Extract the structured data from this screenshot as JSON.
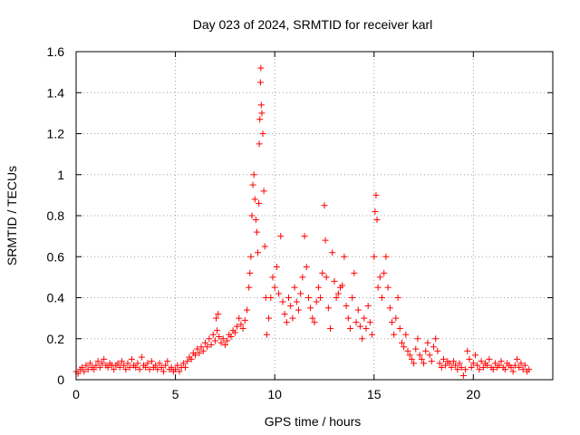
{
  "chart_data": {
    "type": "scatter",
    "title": "Day 023 of 2024, SRMTID for receiver karl",
    "xlabel": "GPS time / hours",
    "ylabel": "SRMTID / TECUs",
    "xlim": [
      0,
      24
    ],
    "ylim": [
      0,
      1.6
    ],
    "xticks": [
      0,
      5,
      10,
      15,
      20
    ],
    "xtick_labels": [
      "0",
      "5",
      "10",
      "15",
      "20"
    ],
    "yticks": [
      0,
      0.2,
      0.4,
      0.6,
      0.8,
      1.0,
      1.2,
      1.4,
      1.6
    ],
    "ytick_labels": [
      "0",
      "0.2",
      "0.4",
      "0.6",
      "0.8",
      "1",
      "1.2",
      "1.4",
      "1.6"
    ],
    "grid": true,
    "marker": "+",
    "color": "#ff0000",
    "series": [
      {
        "name": "SRMTID",
        "points": [
          [
            0.0,
            0.04
          ],
          [
            0.1,
            0.03
          ],
          [
            0.2,
            0.05
          ],
          [
            0.3,
            0.06
          ],
          [
            0.4,
            0.04
          ],
          [
            0.5,
            0.07
          ],
          [
            0.6,
            0.05
          ],
          [
            0.7,
            0.08
          ],
          [
            0.8,
            0.06
          ],
          [
            0.9,
            0.05
          ],
          [
            1.0,
            0.07
          ],
          [
            1.1,
            0.09
          ],
          [
            1.2,
            0.06
          ],
          [
            1.3,
            0.08
          ],
          [
            1.4,
            0.1
          ],
          [
            1.5,
            0.07
          ],
          [
            1.6,
            0.06
          ],
          [
            1.7,
            0.08
          ],
          [
            1.8,
            0.07
          ],
          [
            1.9,
            0.05
          ],
          [
            2.0,
            0.07
          ],
          [
            2.1,
            0.08
          ],
          [
            2.2,
            0.06
          ],
          [
            2.3,
            0.09
          ],
          [
            2.4,
            0.07
          ],
          [
            2.5,
            0.05
          ],
          [
            2.6,
            0.08
          ],
          [
            2.7,
            0.06
          ],
          [
            2.8,
            0.1
          ],
          [
            2.9,
            0.07
          ],
          [
            3.0,
            0.06
          ],
          [
            3.1,
            0.08
          ],
          [
            3.2,
            0.05
          ],
          [
            3.3,
            0.11
          ],
          [
            3.4,
            0.07
          ],
          [
            3.5,
            0.06
          ],
          [
            3.6,
            0.08
          ],
          [
            3.7,
            0.05
          ],
          [
            3.8,
            0.09
          ],
          [
            3.9,
            0.06
          ],
          [
            4.0,
            0.07
          ],
          [
            4.1,
            0.05
          ],
          [
            4.2,
            0.08
          ],
          [
            4.3,
            0.06
          ],
          [
            4.4,
            0.04
          ],
          [
            4.5,
            0.07
          ],
          [
            4.6,
            0.09
          ],
          [
            4.7,
            0.05
          ],
          [
            4.8,
            0.06
          ],
          [
            4.9,
            0.04
          ],
          [
            5.0,
            0.05
          ],
          [
            5.1,
            0.07
          ],
          [
            5.2,
            0.04
          ],
          [
            5.3,
            0.06
          ],
          [
            5.4,
            0.08
          ],
          [
            5.5,
            0.06
          ],
          [
            5.6,
            0.09
          ],
          [
            5.7,
            0.11
          ],
          [
            5.8,
            0.1
          ],
          [
            5.9,
            0.13
          ],
          [
            6.0,
            0.12
          ],
          [
            6.1,
            0.15
          ],
          [
            6.2,
            0.13
          ],
          [
            6.3,
            0.16
          ],
          [
            6.4,
            0.14
          ],
          [
            6.5,
            0.18
          ],
          [
            6.6,
            0.16
          ],
          [
            6.7,
            0.2
          ],
          [
            6.8,
            0.17
          ],
          [
            6.9,
            0.22
          ],
          [
            7.0,
            0.19
          ],
          [
            7.05,
            0.3
          ],
          [
            7.1,
            0.24
          ],
          [
            7.15,
            0.32
          ],
          [
            7.2,
            0.21
          ],
          [
            7.3,
            0.18
          ],
          [
            7.4,
            0.2
          ],
          [
            7.5,
            0.17
          ],
          [
            7.6,
            0.19
          ],
          [
            7.7,
            0.22
          ],
          [
            7.8,
            0.21
          ],
          [
            7.9,
            0.24
          ],
          [
            8.0,
            0.23
          ],
          [
            8.1,
            0.26
          ],
          [
            8.2,
            0.3
          ],
          [
            8.3,
            0.27
          ],
          [
            8.4,
            0.25
          ],
          [
            8.5,
            0.29
          ],
          [
            8.6,
            0.34
          ],
          [
            8.7,
            0.45
          ],
          [
            8.75,
            0.52
          ],
          [
            8.8,
            0.6
          ],
          [
            8.85,
            0.8
          ],
          [
            8.9,
            0.95
          ],
          [
            8.95,
            1.0
          ],
          [
            9.0,
            0.88
          ],
          [
            9.05,
            0.78
          ],
          [
            9.1,
            0.72
          ],
          [
            9.15,
            0.62
          ],
          [
            9.2,
            0.86
          ],
          [
            9.22,
            1.15
          ],
          [
            9.25,
            1.27
          ],
          [
            9.28,
            1.45
          ],
          [
            9.3,
            1.52
          ],
          [
            9.32,
            1.34
          ],
          [
            9.35,
            1.3
          ],
          [
            9.4,
            1.2
          ],
          [
            9.45,
            0.92
          ],
          [
            9.5,
            0.65
          ],
          [
            9.55,
            0.4
          ],
          [
            9.6,
            0.22
          ],
          [
            9.7,
            0.3
          ],
          [
            9.8,
            0.4
          ],
          [
            9.9,
            0.5
          ],
          [
            10.0,
            0.45
          ],
          [
            10.1,
            0.55
          ],
          [
            10.2,
            0.42
          ],
          [
            10.3,
            0.7
          ],
          [
            10.4,
            0.38
          ],
          [
            10.5,
            0.32
          ],
          [
            10.6,
            0.28
          ],
          [
            10.7,
            0.4
          ],
          [
            10.8,
            0.36
          ],
          [
            10.9,
            0.3
          ],
          [
            11.0,
            0.45
          ],
          [
            11.1,
            0.38
          ],
          [
            11.2,
            0.34
          ],
          [
            11.3,
            0.42
          ],
          [
            11.4,
            0.5
          ],
          [
            11.5,
            0.7
          ],
          [
            11.6,
            0.55
          ],
          [
            11.7,
            0.4
          ],
          [
            11.8,
            0.35
          ],
          [
            11.9,
            0.3
          ],
          [
            12.0,
            0.28
          ],
          [
            12.1,
            0.38
          ],
          [
            12.2,
            0.45
          ],
          [
            12.3,
            0.4
          ],
          [
            12.4,
            0.52
          ],
          [
            12.5,
            0.85
          ],
          [
            12.55,
            0.68
          ],
          [
            12.6,
            0.5
          ],
          [
            12.7,
            0.35
          ],
          [
            12.8,
            0.25
          ],
          [
            12.9,
            0.62
          ],
          [
            13.0,
            0.48
          ],
          [
            13.1,
            0.4
          ],
          [
            13.2,
            0.42
          ],
          [
            13.3,
            0.45
          ],
          [
            13.4,
            0.46
          ],
          [
            13.5,
            0.6
          ],
          [
            13.6,
            0.36
          ],
          [
            13.7,
            0.3
          ],
          [
            13.8,
            0.25
          ],
          [
            13.9,
            0.4
          ],
          [
            14.0,
            0.52
          ],
          [
            14.1,
            0.28
          ],
          [
            14.2,
            0.34
          ],
          [
            14.3,
            0.26
          ],
          [
            14.4,
            0.2
          ],
          [
            14.5,
            0.3
          ],
          [
            14.6,
            0.25
          ],
          [
            14.7,
            0.36
          ],
          [
            14.8,
            0.28
          ],
          [
            14.9,
            0.22
          ],
          [
            15.0,
            0.6
          ],
          [
            15.05,
            0.82
          ],
          [
            15.1,
            0.9
          ],
          [
            15.15,
            0.78
          ],
          [
            15.2,
            0.45
          ],
          [
            15.3,
            0.5
          ],
          [
            15.4,
            0.4
          ],
          [
            15.5,
            0.52
          ],
          [
            15.6,
            0.6
          ],
          [
            15.7,
            0.45
          ],
          [
            15.8,
            0.35
          ],
          [
            15.9,
            0.28
          ],
          [
            16.0,
            0.22
          ],
          [
            16.1,
            0.3
          ],
          [
            16.2,
            0.4
          ],
          [
            16.3,
            0.25
          ],
          [
            16.4,
            0.18
          ],
          [
            16.5,
            0.16
          ],
          [
            16.6,
            0.22
          ],
          [
            16.7,
            0.14
          ],
          [
            16.8,
            0.12
          ],
          [
            16.9,
            0.1
          ],
          [
            17.0,
            0.08
          ],
          [
            17.1,
            0.15
          ],
          [
            17.2,
            0.2
          ],
          [
            17.3,
            0.12
          ],
          [
            17.4,
            0.1
          ],
          [
            17.5,
            0.08
          ],
          [
            17.6,
            0.14
          ],
          [
            17.7,
            0.18
          ],
          [
            17.8,
            0.12
          ],
          [
            17.9,
            0.09
          ],
          [
            18.0,
            0.16
          ],
          [
            18.1,
            0.2
          ],
          [
            18.2,
            0.14
          ],
          [
            18.3,
            0.08
          ],
          [
            18.4,
            0.06
          ],
          [
            18.5,
            0.1
          ],
          [
            18.6,
            0.07
          ],
          [
            18.7,
            0.09
          ],
          [
            18.8,
            0.08
          ],
          [
            18.9,
            0.06
          ],
          [
            19.0,
            0.09
          ],
          [
            19.1,
            0.07
          ],
          [
            19.2,
            0.05
          ],
          [
            19.3,
            0.08
          ],
          [
            19.4,
            0.06
          ],
          [
            19.5,
            0.02
          ],
          [
            19.6,
            0.05
          ],
          [
            19.7,
            0.14
          ],
          [
            19.8,
            0.1
          ],
          [
            19.9,
            0.06
          ],
          [
            20.0,
            0.08
          ],
          [
            20.1,
            0.12
          ],
          [
            20.2,
            0.07
          ],
          [
            20.3,
            0.05
          ],
          [
            20.4,
            0.09
          ],
          [
            20.5,
            0.06
          ],
          [
            20.6,
            0.08
          ],
          [
            20.7,
            0.07
          ],
          [
            20.8,
            0.1
          ],
          [
            20.9,
            0.06
          ],
          [
            21.0,
            0.05
          ],
          [
            21.1,
            0.08
          ],
          [
            21.2,
            0.06
          ],
          [
            21.3,
            0.07
          ],
          [
            21.4,
            0.09
          ],
          [
            21.5,
            0.06
          ],
          [
            21.6,
            0.05
          ],
          [
            21.7,
            0.08
          ],
          [
            21.8,
            0.07
          ],
          [
            21.9,
            0.06
          ],
          [
            22.0,
            0.04
          ],
          [
            22.1,
            0.07
          ],
          [
            22.2,
            0.1
          ],
          [
            22.3,
            0.06
          ],
          [
            22.4,
            0.08
          ],
          [
            22.5,
            0.05
          ],
          [
            22.6,
            0.07
          ],
          [
            22.7,
            0.04
          ],
          [
            22.8,
            0.05
          ]
        ]
      }
    ]
  }
}
